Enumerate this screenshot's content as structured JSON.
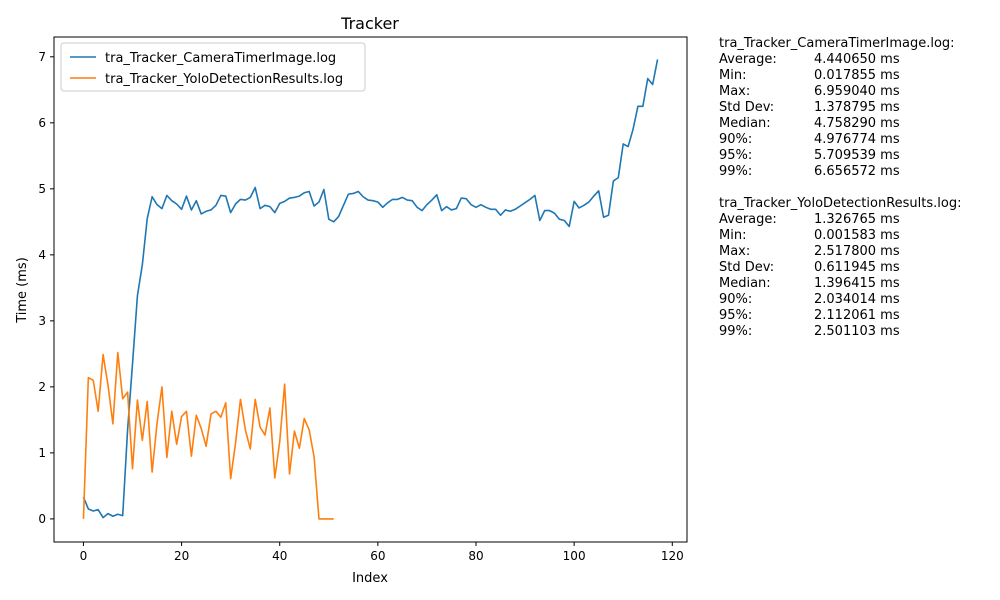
{
  "chart_data": {
    "type": "line",
    "title": "Tracker",
    "xlabel": "Index",
    "ylabel": "Time (ms)",
    "xlim": [
      -6,
      123
    ],
    "ylim": [
      -0.35,
      7.3
    ],
    "xticks": [
      0,
      20,
      40,
      60,
      80,
      100,
      120
    ],
    "yticks": [
      0,
      1,
      2,
      3,
      4,
      5,
      6,
      7
    ],
    "grid": false,
    "legend_position": "top-left",
    "series": [
      {
        "name": "tra_Tracker_CameraTimerImage.log",
        "color": "#1f77b4",
        "values": [
          0.33,
          0.15,
          0.12,
          0.14,
          0.02,
          0.08,
          0.04,
          0.07,
          0.05,
          1.35,
          2.35,
          3.38,
          3.85,
          4.55,
          4.88,
          4.76,
          4.7,
          4.9,
          4.82,
          4.77,
          4.69,
          4.89,
          4.68,
          4.82,
          4.62,
          4.66,
          4.68,
          4.75,
          4.9,
          4.89,
          4.64,
          4.77,
          4.84,
          4.83,
          4.87,
          5.02,
          4.7,
          4.75,
          4.73,
          4.64,
          4.78,
          4.81,
          4.86,
          4.87,
          4.89,
          4.94,
          4.96,
          4.74,
          4.8,
          4.99,
          4.54,
          4.5,
          4.58,
          4.75,
          4.92,
          4.93,
          4.96,
          4.88,
          4.83,
          4.82,
          4.8,
          4.72,
          4.79,
          4.84,
          4.84,
          4.87,
          4.83,
          4.82,
          4.72,
          4.67,
          4.76,
          4.83,
          4.91,
          4.67,
          4.73,
          4.68,
          4.7,
          4.86,
          4.85,
          4.76,
          4.72,
          4.76,
          4.72,
          4.69,
          4.69,
          4.6,
          4.68,
          4.66,
          4.69,
          4.74,
          4.79,
          4.84,
          4.9,
          4.52,
          4.67,
          4.67,
          4.63,
          4.54,
          4.52,
          4.43,
          4.81,
          4.71,
          4.75,
          4.8,
          4.89,
          4.97,
          4.57,
          4.6,
          5.12,
          5.17,
          5.68,
          5.64,
          5.9,
          6.25,
          6.25,
          6.67,
          6.58,
          6.96
        ]
      },
      {
        "name": "tra_Tracker_YoloDetectionResults.log",
        "color": "#ff7f0e",
        "values": [
          0.0,
          2.14,
          2.1,
          1.63,
          2.49,
          2.03,
          1.44,
          2.52,
          1.82,
          1.92,
          0.76,
          1.8,
          1.19,
          1.78,
          0.71,
          1.45,
          2.0,
          0.93,
          1.63,
          1.13,
          1.55,
          1.63,
          0.95,
          1.57,
          1.37,
          1.1,
          1.59,
          1.63,
          1.54,
          1.76,
          0.61,
          1.15,
          1.81,
          1.35,
          1.06,
          1.81,
          1.39,
          1.27,
          1.68,
          0.62,
          1.17,
          2.04,
          0.68,
          1.33,
          1.07,
          1.52,
          1.35,
          0.94,
          0.0,
          0.0,
          0.0,
          0.0
        ]
      }
    ]
  },
  "stats": [
    {
      "title": "tra_Tracker_CameraTimerImage.log:",
      "rows": [
        {
          "label": "Average:",
          "value": "4.440650 ms"
        },
        {
          "label": "Min:",
          "value": "0.017855 ms"
        },
        {
          "label": "Max:",
          "value": "6.959040 ms"
        },
        {
          "label": "Std Dev:",
          "value": "1.378795 ms"
        },
        {
          "label": "Median:",
          "value": "4.758290 ms"
        },
        {
          "label": "90%:",
          "value": "4.976774 ms"
        },
        {
          "label": "95%:",
          "value": "5.709539 ms"
        },
        {
          "label": "99%:",
          "value": "6.656572 ms"
        }
      ]
    },
    {
      "title": "tra_Tracker_YoloDetectionResults.log:",
      "rows": [
        {
          "label": "Average:",
          "value": "1.326765 ms"
        },
        {
          "label": "Min:",
          "value": "0.001583 ms"
        },
        {
          "label": "Max:",
          "value": "2.517800 ms"
        },
        {
          "label": "Std Dev:",
          "value": "0.611945 ms"
        },
        {
          "label": "Median:",
          "value": "1.396415 ms"
        },
        {
          "label": "90%:",
          "value": "2.034014 ms"
        },
        {
          "label": "95%:",
          "value": "2.112061 ms"
        },
        {
          "label": "99%:",
          "value": "2.501103 ms"
        }
      ]
    }
  ]
}
